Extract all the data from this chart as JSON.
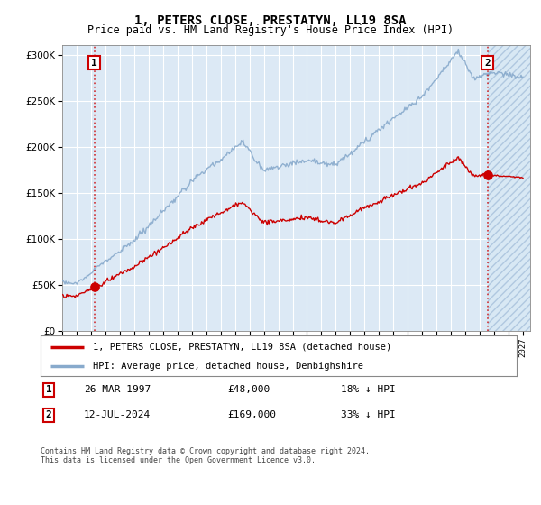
{
  "title": "1, PETERS CLOSE, PRESTATYN, LL19 8SA",
  "subtitle": "Price paid vs. HM Land Registry's House Price Index (HPI)",
  "title_fontsize": 10,
  "subtitle_fontsize": 8.5,
  "background_color": "#ffffff",
  "plot_bg_color": "#dce9f5",
  "grid_color": "#ffffff",
  "sale1_date_num": 1997.23,
  "sale1_price": 48000,
  "sale2_date_num": 2024.53,
  "sale2_price": 169000,
  "red_line_color": "#cc0000",
  "blue_line_color": "#88aacc",
  "legend_label_red": "1, PETERS CLOSE, PRESTATYN, LL19 8SA (detached house)",
  "legend_label_blue": "HPI: Average price, detached house, Denbighshire",
  "table_row1": [
    "1",
    "26-MAR-1997",
    "£48,000",
    "18% ↓ HPI"
  ],
  "table_row2": [
    "2",
    "12-JUL-2024",
    "£169,000",
    "33% ↓ HPI"
  ],
  "footer": "Contains HM Land Registry data © Crown copyright and database right 2024.\nThis data is licensed under the Open Government Licence v3.0.",
  "xmin": 1995.0,
  "xmax": 2027.5,
  "ymin": 0,
  "ymax": 310000,
  "hatch_start": 2024.53
}
